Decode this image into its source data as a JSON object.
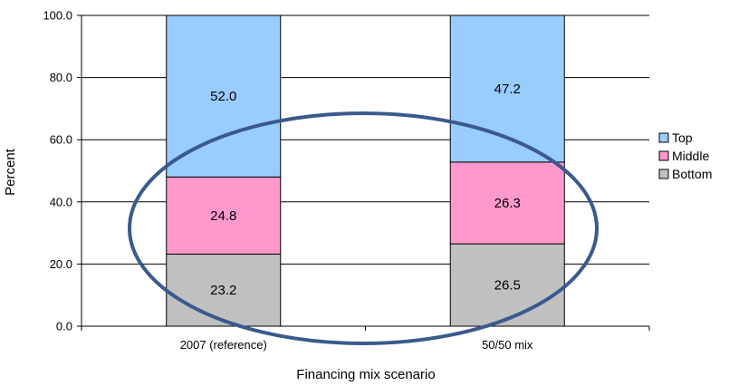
{
  "chart_data": {
    "type": "bar",
    "stacked": true,
    "categories": [
      "2007 (reference)",
      "50/50 mix"
    ],
    "series": [
      {
        "name": "Bottom",
        "values": [
          23.2,
          26.5
        ],
        "color": "#c0c0c0"
      },
      {
        "name": "Middle",
        "values": [
          24.8,
          26.3
        ],
        "color": "#ff99cc"
      },
      {
        "name": "Top",
        "values": [
          52.0,
          47.2
        ],
        "color": "#99ccff"
      }
    ],
    "data_labels": [
      [
        "23.2",
        "26.5"
      ],
      [
        "24.8",
        "26.3"
      ],
      [
        "52.0",
        "47.2"
      ]
    ],
    "title": "",
    "xlabel": "Financing mix scenario",
    "ylabel": "Percent",
    "ylim": [
      0,
      100
    ],
    "yticks": [
      0,
      20,
      40,
      60,
      80,
      100
    ],
    "ytick_labels": [
      "0.0",
      "20.0",
      "40.0",
      "60.0",
      "80.0",
      "100.0"
    ],
    "grid": true,
    "legend": {
      "position": "right",
      "entries": [
        "Top",
        "Middle",
        "Bottom"
      ]
    },
    "annotation": {
      "shape": "ellipse",
      "color": "#3a5a8c",
      "encloses": "Bottom and Middle segments of both bars"
    }
  }
}
